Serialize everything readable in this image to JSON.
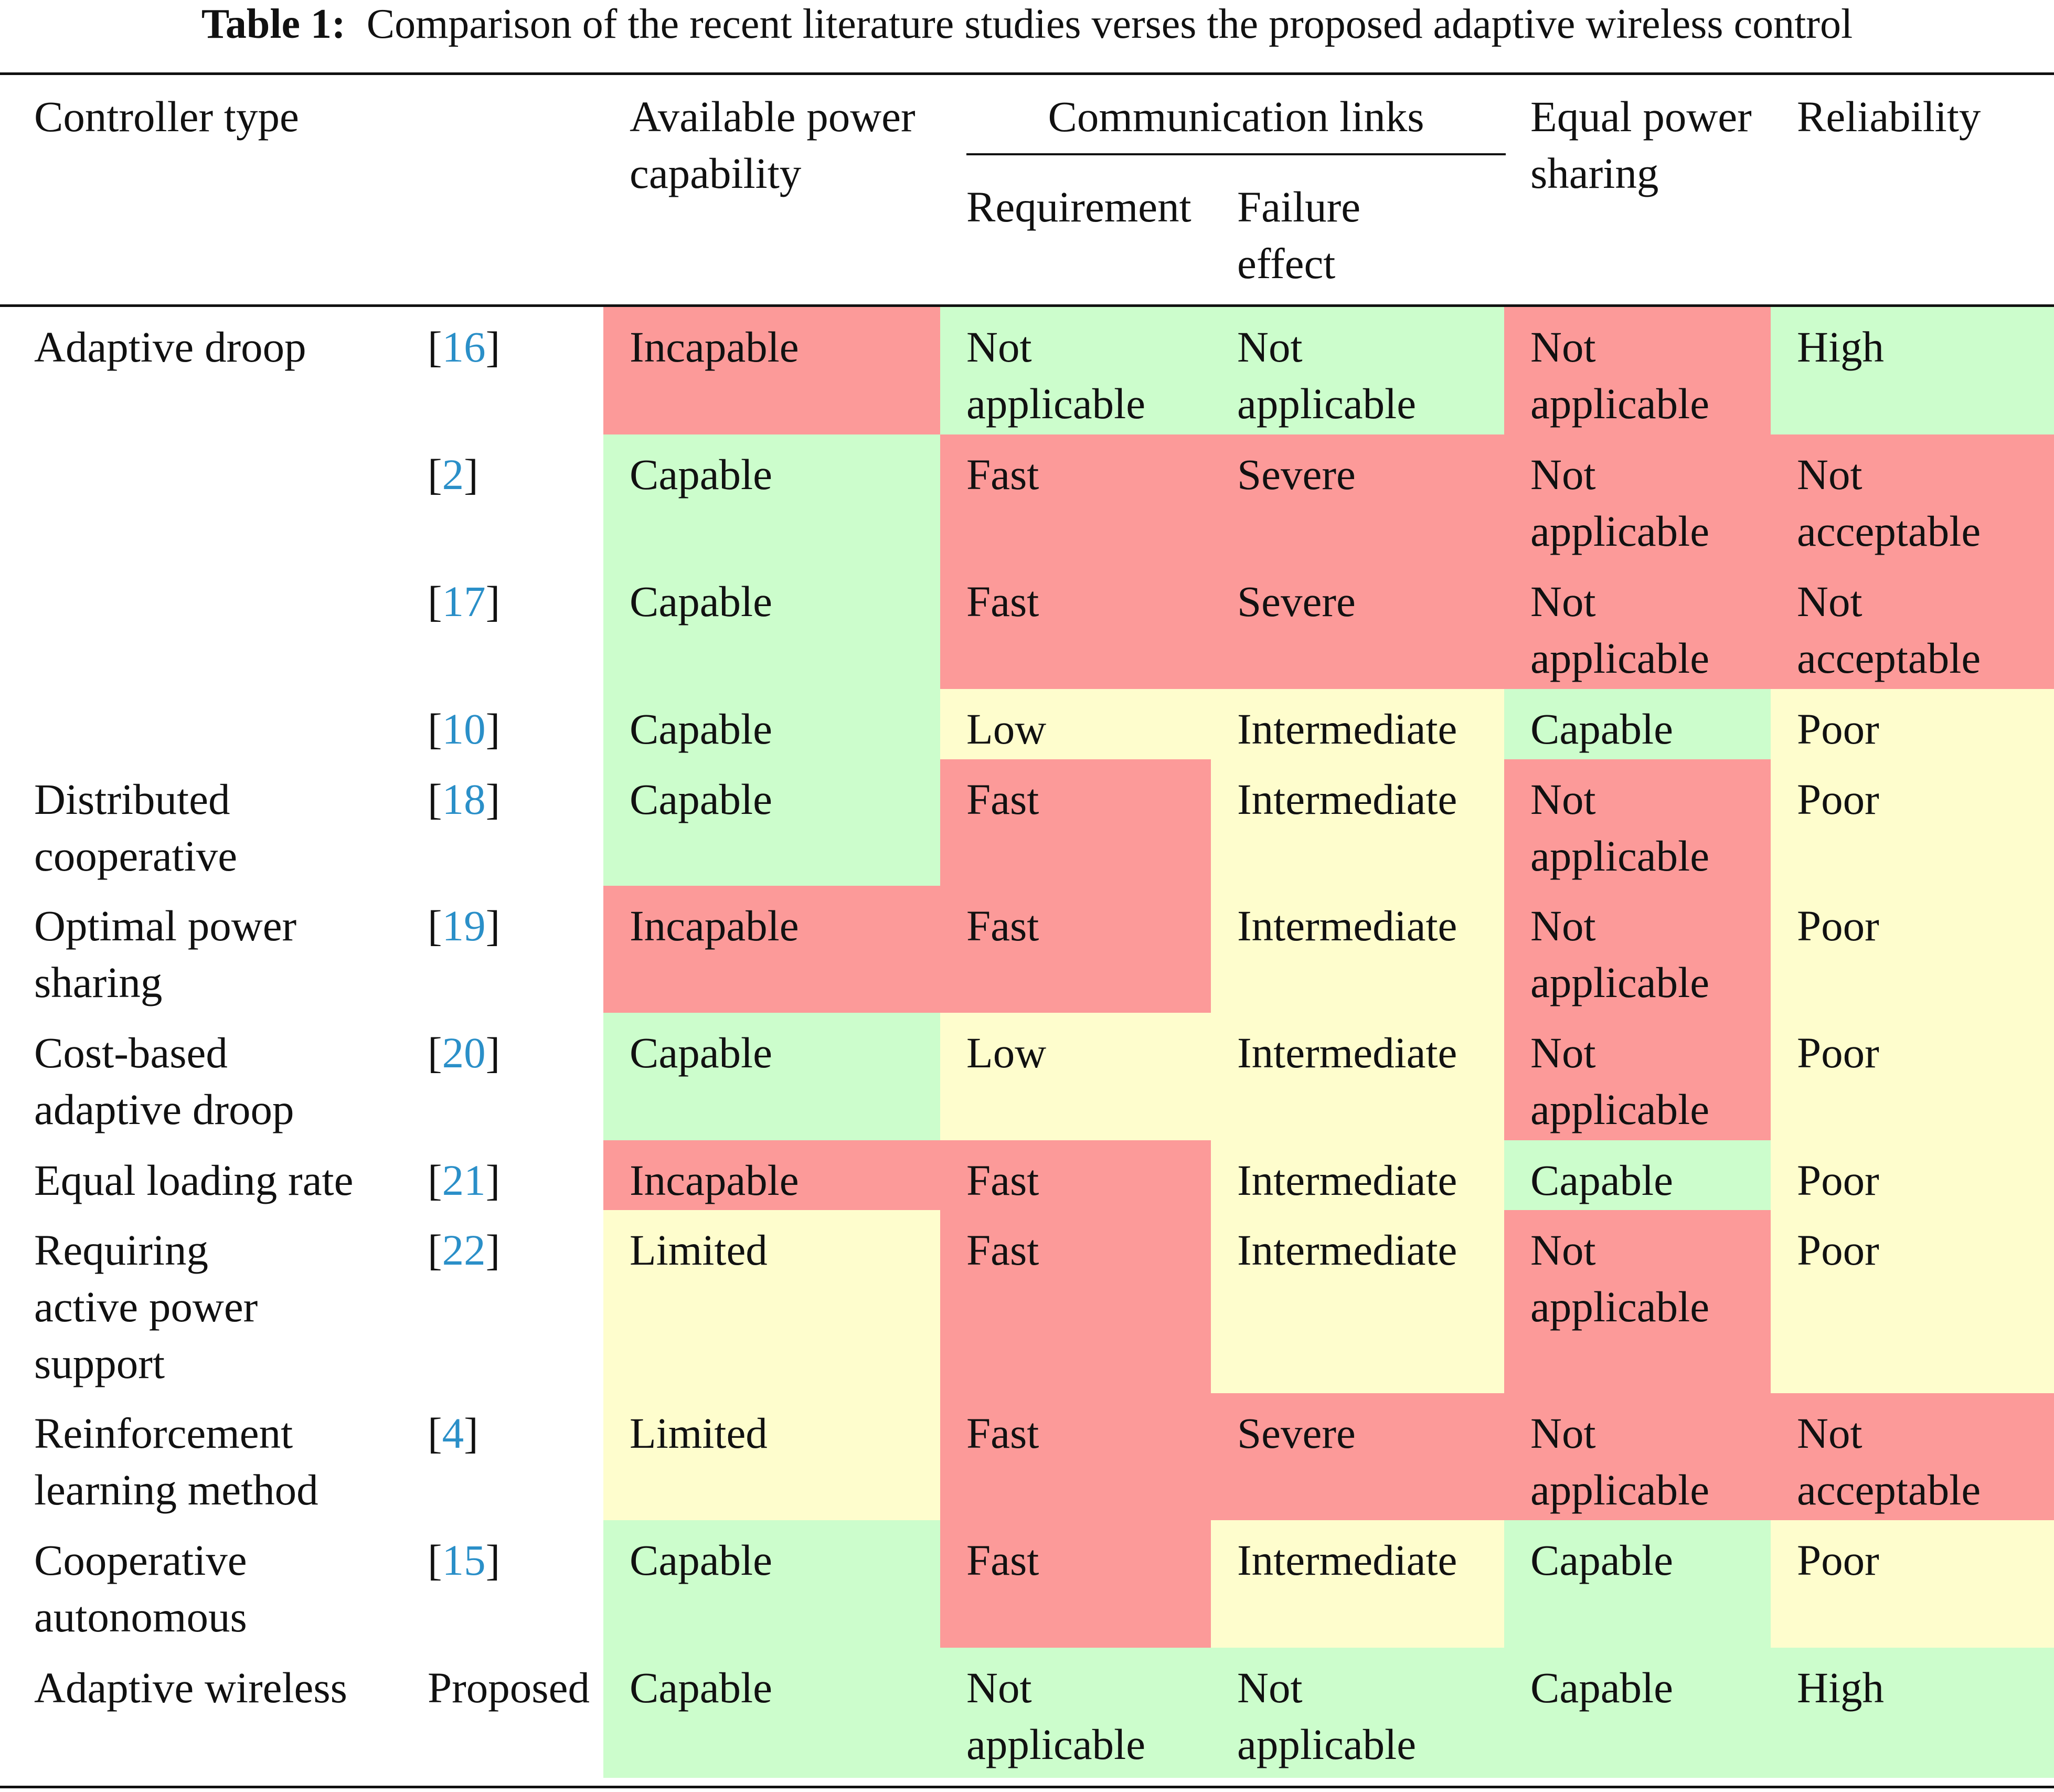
{
  "caption": {
    "label": "Table 1:",
    "text": "Comparison of the recent literature studies verses the proposed adaptive wireless control"
  },
  "header": {
    "controller_type": "Controller type",
    "available_power": "Available power\ncapability",
    "communication_links": "Communication links",
    "requirement": "Requirement",
    "failure_effect": "Failure\neffect",
    "equal_power_sharing": "Equal power\nsharing",
    "reliability": "Reliability"
  },
  "colors": {
    "red": "#fc9a99",
    "green": "#ccfdcc",
    "yellow": "#fefdcd",
    "citation": "#2a8fc8"
  },
  "rows": [
    {
      "controller": "Adaptive droop",
      "ref": "16",
      "available_power": {
        "text": "Incapable",
        "rating": "red"
      },
      "requirement": {
        "text": "Not\napplicable",
        "rating": "green"
      },
      "failure_effect": {
        "text": "Not\napplicable",
        "rating": "green"
      },
      "equal_power_sharing": {
        "text": "Not\napplicable",
        "rating": "red"
      },
      "reliability": {
        "text": "High",
        "rating": "green"
      }
    },
    {
      "controller": "",
      "ref": "2",
      "available_power": {
        "text": "Capable",
        "rating": "green"
      },
      "requirement": {
        "text": "Fast",
        "rating": "red"
      },
      "failure_effect": {
        "text": "Severe",
        "rating": "red"
      },
      "equal_power_sharing": {
        "text": "Not\napplicable",
        "rating": "red"
      },
      "reliability": {
        "text": "Not\nacceptable",
        "rating": "red"
      }
    },
    {
      "controller": "",
      "ref": "17",
      "available_power": {
        "text": "Capable",
        "rating": "green"
      },
      "requirement": {
        "text": "Fast",
        "rating": "red"
      },
      "failure_effect": {
        "text": "Severe",
        "rating": "red"
      },
      "equal_power_sharing": {
        "text": "Not\napplicable",
        "rating": "red"
      },
      "reliability": {
        "text": "Not\nacceptable",
        "rating": "red"
      }
    },
    {
      "controller": "",
      "ref": "10",
      "available_power": {
        "text": "Capable",
        "rating": "green"
      },
      "requirement": {
        "text": "Low",
        "rating": "yellow"
      },
      "failure_effect": {
        "text": "Intermediate",
        "rating": "yellow"
      },
      "equal_power_sharing": {
        "text": "Capable",
        "rating": "green"
      },
      "reliability": {
        "text": "Poor",
        "rating": "yellow"
      }
    },
    {
      "controller": "Distributed\ncooperative",
      "ref": "18",
      "available_power": {
        "text": "Capable",
        "rating": "green"
      },
      "requirement": {
        "text": "Fast",
        "rating": "red"
      },
      "failure_effect": {
        "text": "Intermediate",
        "rating": "yellow"
      },
      "equal_power_sharing": {
        "text": "Not\napplicable",
        "rating": "red"
      },
      "reliability": {
        "text": "Poor",
        "rating": "yellow"
      }
    },
    {
      "controller": "Optimal power\nsharing",
      "ref": "19",
      "available_power": {
        "text": "Incapable",
        "rating": "red"
      },
      "requirement": {
        "text": "Fast",
        "rating": "red"
      },
      "failure_effect": {
        "text": "Intermediate",
        "rating": "yellow"
      },
      "equal_power_sharing": {
        "text": "Not\napplicable",
        "rating": "red"
      },
      "reliability": {
        "text": "Poor",
        "rating": "yellow"
      }
    },
    {
      "controller": "Cost-based\nadaptive droop",
      "ref": "20",
      "available_power": {
        "text": "Capable",
        "rating": "green"
      },
      "requirement": {
        "text": "Low",
        "rating": "yellow"
      },
      "failure_effect": {
        "text": "Intermediate",
        "rating": "yellow"
      },
      "equal_power_sharing": {
        "text": "Not\napplicable",
        "rating": "red"
      },
      "reliability": {
        "text": "Poor",
        "rating": "yellow"
      }
    },
    {
      "controller": "Equal loading rate",
      "ref": "21",
      "available_power": {
        "text": "Incapable",
        "rating": "red"
      },
      "requirement": {
        "text": "Fast",
        "rating": "red"
      },
      "failure_effect": {
        "text": "Intermediate",
        "rating": "yellow"
      },
      "equal_power_sharing": {
        "text": "Capable",
        "rating": "green"
      },
      "reliability": {
        "text": "Poor",
        "rating": "yellow"
      }
    },
    {
      "controller": "Requiring\nactive power\nsupport",
      "ref": "22",
      "available_power": {
        "text": "Limited",
        "rating": "yellow"
      },
      "requirement": {
        "text": "Fast",
        "rating": "red"
      },
      "failure_effect": {
        "text": "Intermediate",
        "rating": "yellow"
      },
      "equal_power_sharing": {
        "text": "Not\napplicable",
        "rating": "red"
      },
      "reliability": {
        "text": "Poor",
        "rating": "yellow"
      }
    },
    {
      "controller": "Reinforcement\nlearning method",
      "ref": "4",
      "available_power": {
        "text": "Limited",
        "rating": "yellow"
      },
      "requirement": {
        "text": "Fast",
        "rating": "red"
      },
      "failure_effect": {
        "text": "Severe",
        "rating": "red"
      },
      "equal_power_sharing": {
        "text": "Not\napplicable",
        "rating": "red"
      },
      "reliability": {
        "text": "Not\nacceptable",
        "rating": "red"
      }
    },
    {
      "controller": "Cooperative\nautonomous",
      "ref": "15",
      "available_power": {
        "text": "Capable",
        "rating": "green"
      },
      "requirement": {
        "text": "Fast",
        "rating": "red"
      },
      "failure_effect": {
        "text": "Intermediate",
        "rating": "yellow"
      },
      "equal_power_sharing": {
        "text": "Capable",
        "rating": "green"
      },
      "reliability": {
        "text": "Poor",
        "rating": "yellow"
      }
    },
    {
      "controller": "Adaptive wireless",
      "ref_label": "Proposed",
      "available_power": {
        "text": "Capable",
        "rating": "green"
      },
      "requirement": {
        "text": "Not\napplicable",
        "rating": "green"
      },
      "failure_effect": {
        "text": "Not\napplicable",
        "rating": "green"
      },
      "equal_power_sharing": {
        "text": "Capable",
        "rating": "green"
      },
      "reliability": {
        "text": "High",
        "rating": "green"
      }
    }
  ]
}
